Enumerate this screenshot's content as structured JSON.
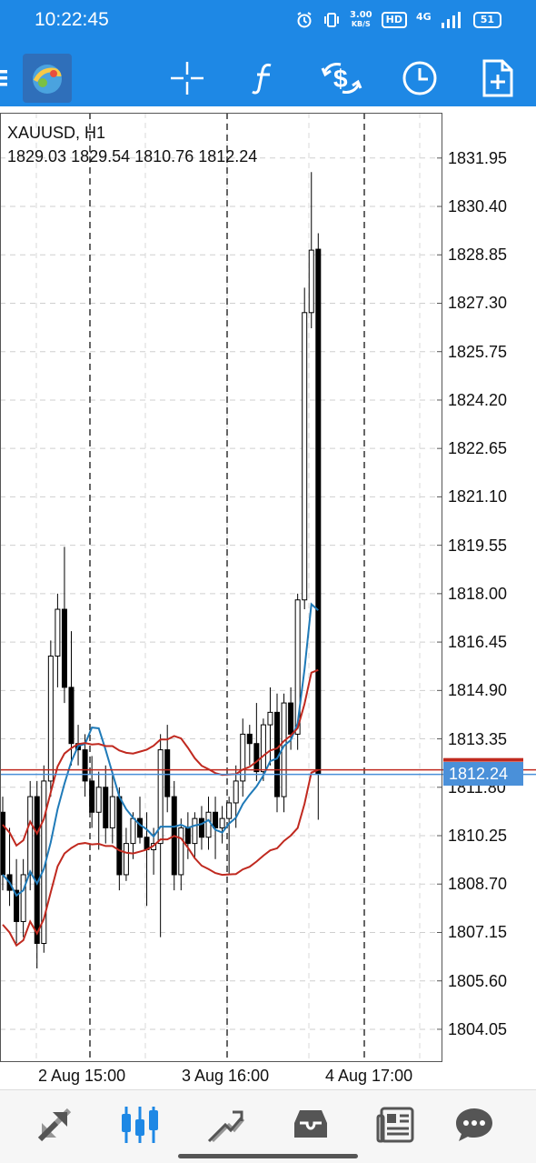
{
  "status": {
    "time": "10:22:45",
    "speed_value": "3.00",
    "speed_unit": "KB/S",
    "hd": "HD",
    "network": "4G",
    "battery": "51"
  },
  "toolbar": {
    "menu_icon": "menu-icon",
    "logo_icon": "metatrader-logo-icon",
    "crosshair_icon": "crosshair-icon",
    "indicators_icon": "function-icon",
    "trade_icon": "currency-exchange-icon",
    "timeframe_icon": "clock-icon",
    "new_order_icon": "new-document-icon"
  },
  "chart": {
    "symbol": "XAUUSD, H1",
    "ohlc": "1829.03 1829.54 1810.76 1812.24",
    "current_price": "1812.24",
    "y_ticks": [
      "1831.95",
      "1830.40",
      "1828.85",
      "1827.30",
      "1825.75",
      "1824.20",
      "1822.65",
      "1821.10",
      "1819.55",
      "1818.00",
      "1816.45",
      "1814.90",
      "1813.35",
      "1811.80",
      "1810.25",
      "1808.70",
      "1807.15",
      "1805.60",
      "1804.05"
    ],
    "x_ticks": [
      "2 Aug 15:00",
      "3 Aug 16:00",
      "4 Aug 17:00"
    ],
    "colors": {
      "bull": "#ffffff",
      "bear": "#000000",
      "ma_blue": "#1f7ab8",
      "band_red": "#c0291f",
      "badge": "#4a90d9",
      "accent": "#1e88e5"
    }
  },
  "chart_data": {
    "type": "candlestick",
    "symbol": "XAUUSD",
    "timeframe": "H1",
    "ylim": [
      1803.0,
      1833.4
    ],
    "x": [
      "",
      "",
      "",
      "",
      "",
      "",
      "2 Aug 15:00",
      "",
      "",
      "",
      "",
      "",
      "",
      "",
      "",
      "",
      "",
      "",
      "",
      "",
      "",
      "",
      "",
      "",
      "",
      "",
      "",
      "",
      "3 Aug 16:00",
      "",
      "",
      "",
      "",
      "",
      "",
      "",
      "",
      "",
      "",
      "",
      "",
      "",
      "",
      "",
      "",
      "",
      "",
      "4 Aug 17:00"
    ],
    "ohlc": [
      [
        1811.0,
        1811.5,
        1808.5,
        1809.0
      ],
      [
        1809.0,
        1810.5,
        1808.0,
        1808.5
      ],
      [
        1808.5,
        1809.5,
        1806.8,
        1807.5
      ],
      [
        1807.5,
        1809.5,
        1807.0,
        1809.0
      ],
      [
        1809.0,
        1812.0,
        1808.5,
        1811.5
      ],
      [
        1811.5,
        1812.0,
        1806.0,
        1806.8
      ],
      [
        1806.8,
        1812.5,
        1806.5,
        1812.0
      ],
      [
        1812.0,
        1816.5,
        1811.5,
        1816.0
      ],
      [
        1816.0,
        1818.0,
        1815.0,
        1817.5
      ],
      [
        1817.5,
        1819.5,
        1814.5,
        1815.0
      ],
      [
        1815.0,
        1816.8,
        1812.5,
        1813.2
      ],
      [
        1813.2,
        1813.8,
        1812.5,
        1813.0
      ],
      [
        1813.0,
        1813.5,
        1811.5,
        1812.0
      ],
      [
        1812.0,
        1812.8,
        1810.5,
        1811.0
      ],
      [
        1811.0,
        1812.3,
        1809.8,
        1811.8
      ],
      [
        1811.8,
        1812.5,
        1810.0,
        1810.5
      ],
      [
        1810.5,
        1812.3,
        1810.0,
        1811.5
      ],
      [
        1811.5,
        1811.8,
        1808.5,
        1809.0
      ],
      [
        1809.0,
        1810.5,
        1808.8,
        1810.0
      ],
      [
        1810.0,
        1811.0,
        1809.5,
        1810.8
      ],
      [
        1810.8,
        1811.5,
        1810.0,
        1810.2
      ],
      [
        1810.2,
        1811.0,
        1808.0,
        1809.8
      ],
      [
        1809.8,
        1810.5,
        1809.0,
        1810.0
      ],
      [
        1810.0,
        1813.5,
        1807.0,
        1813.0
      ],
      [
        1813.0,
        1813.8,
        1811.0,
        1811.5
      ],
      [
        1811.5,
        1812.0,
        1808.5,
        1809.0
      ],
      [
        1809.0,
        1810.8,
        1808.5,
        1810.5
      ],
      [
        1810.5,
        1811.0,
        1809.5,
        1810.0
      ],
      [
        1810.0,
        1811.0,
        1809.5,
        1810.8
      ],
      [
        1810.8,
        1811.2,
        1809.8,
        1810.2
      ],
      [
        1810.2,
        1811.5,
        1809.8,
        1811.0
      ],
      [
        1811.0,
        1811.5,
        1809.5,
        1810.5
      ],
      [
        1810.5,
        1811.2,
        1810.0,
        1810.8
      ],
      [
        1810.8,
        1811.5,
        1809.0,
        1811.3
      ],
      [
        1811.3,
        1812.5,
        1810.5,
        1812.0
      ],
      [
        1812.0,
        1814.0,
        1811.5,
        1813.5
      ],
      [
        1813.5,
        1813.8,
        1812.5,
        1813.2
      ],
      [
        1813.2,
        1814.5,
        1812.0,
        1812.3
      ],
      [
        1812.3,
        1814.0,
        1812.0,
        1813.8
      ],
      [
        1813.8,
        1815.0,
        1812.5,
        1814.2
      ],
      [
        1814.2,
        1814.8,
        1811.0,
        1811.5
      ],
      [
        1811.5,
        1814.8,
        1811.0,
        1814.5
      ],
      [
        1814.5,
        1815.0,
        1813.0,
        1813.5
      ],
      [
        1813.5,
        1818.0,
        1813.0,
        1817.8
      ],
      [
        1817.8,
        1827.8,
        1817.5,
        1827.0
      ],
      [
        1827.0,
        1831.5,
        1826.5,
        1829.0
      ],
      [
        1829.03,
        1829.54,
        1810.76,
        1812.24
      ]
    ]
  },
  "bottom_nav": [
    {
      "name": "quotes-icon",
      "active": false
    },
    {
      "name": "chart-candles-icon",
      "active": true
    },
    {
      "name": "trade-icon",
      "active": false
    },
    {
      "name": "history-icon",
      "active": false
    },
    {
      "name": "news-icon",
      "active": false
    },
    {
      "name": "chat-icon",
      "active": false
    }
  ]
}
